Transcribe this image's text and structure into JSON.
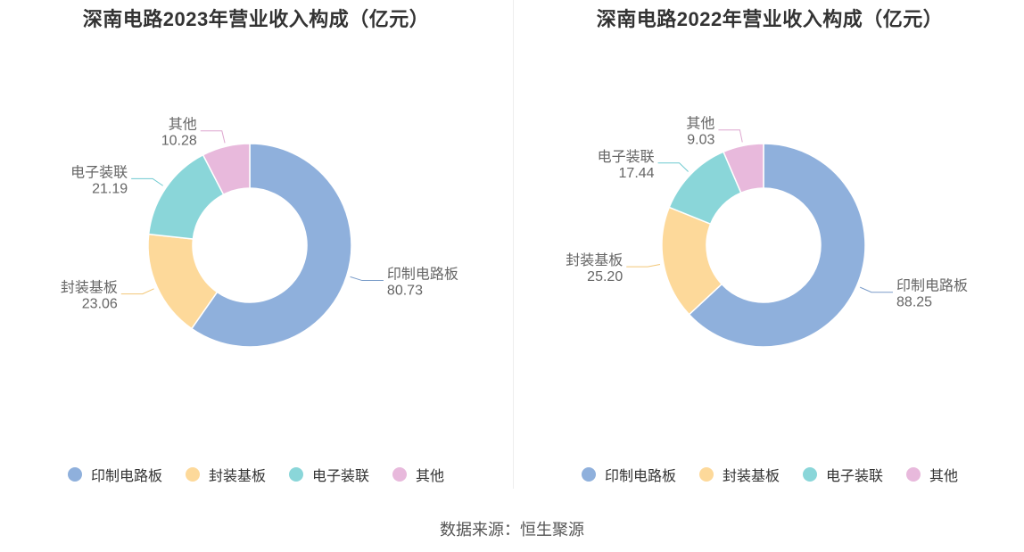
{
  "source_text": "数据来源：恒生聚源",
  "colors": {
    "印制电路板": "#8fb0dc",
    "封装基板": "#fdd99a",
    "电子装联": "#8ad6d9",
    "其他": "#e8b9dc"
  },
  "chart_data": [
    {
      "type": "pie",
      "title": "深南电路2023年营业收入构成（亿元）",
      "categories": [
        "印制电路板",
        "封装基板",
        "电子装联",
        "其他"
      ],
      "values": [
        80.73,
        23.06,
        21.19,
        10.28
      ],
      "value_labels": [
        "80.73",
        "23.06",
        "21.19",
        "10.28"
      ],
      "legend": [
        "印制电路板",
        "封装基板",
        "电子装联",
        "其他"
      ],
      "legend_position": "bottom"
    },
    {
      "type": "pie",
      "title": "深南电路2022年营业收入构成（亿元）",
      "categories": [
        "印制电路板",
        "封装基板",
        "电子装联",
        "其他"
      ],
      "values": [
        88.25,
        25.2,
        17.44,
        9.03
      ],
      "value_labels": [
        "88.25",
        "25.20",
        "17.44",
        "9.03"
      ],
      "legend": [
        "印制电路板",
        "封装基板",
        "电子装联",
        "其他"
      ],
      "legend_position": "bottom"
    }
  ]
}
